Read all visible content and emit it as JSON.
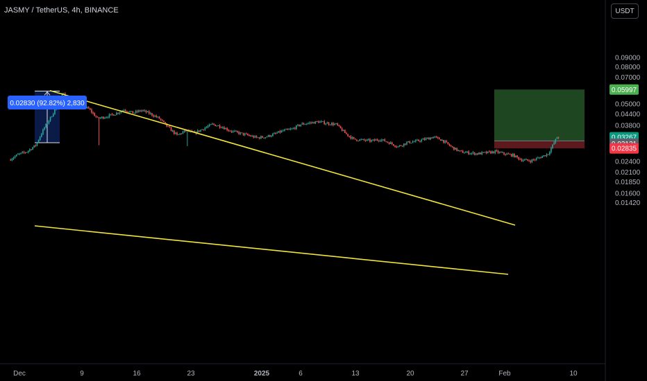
{
  "header": {
    "symbol_title": "JASMY / TetherUS, 4h, BINANCE",
    "currency_button": "USDT"
  },
  "measure_tooltip": "0.02830 (92.82%) 2,830",
  "price_axis": {
    "ticks": [
      "0.09000",
      "0.08000",
      "0.07000",
      "0.05000",
      "0.04400",
      "0.03800",
      "0.02400",
      "0.02100",
      "0.01850",
      "0.01600",
      "0.01420"
    ],
    "tag_target": {
      "text": "0.05997",
      "color": "#4caf50"
    },
    "tag_last": {
      "text": "0.03267",
      "countdown": "09:29",
      "color": "#089981"
    },
    "tag_entry": {
      "text": "0.03121",
      "color": "#5d606b"
    },
    "tag_stop": {
      "text": "0.02835",
      "color": "#f23645"
    }
  },
  "time_axis": {
    "labels": [
      "Dec",
      "9",
      "16",
      "23",
      "2025",
      "6",
      "13",
      "20",
      "27",
      "Feb",
      "10"
    ]
  },
  "colors": {
    "up": "#26a69a",
    "down": "#ef5350",
    "trendline": "#f5e53b",
    "measure": "#2962ff",
    "profit_zone": "#1e4620",
    "loss_zone": "#5c1a1e",
    "axis_text": "#b2b5be"
  },
  "chart_data": {
    "type": "candlestick",
    "symbol": "JASMY/USDT",
    "timeframe": "4h",
    "exchange": "BINANCE",
    "scale": "log",
    "x_range": [
      "Dec",
      "10"
    ],
    "anchors": [
      {
        "date": "Nov 30",
        "price": 0.0245
      },
      {
        "date": "Dec 1",
        "price": 0.0262
      },
      {
        "date": "Dec 2",
        "price": 0.0272
      },
      {
        "date": "Dec 3",
        "price": 0.0295
      },
      {
        "date": "Dec 4",
        "price": 0.037
      },
      {
        "date": "Dec 5",
        "price": 0.0445
      },
      {
        "date": "Dec 6",
        "price": 0.058
      },
      {
        "date": "Dec 7",
        "price": 0.05
      },
      {
        "date": "Dec 8",
        "price": 0.0485
      },
      {
        "date": "Dec 9",
        "price": 0.047
      },
      {
        "date": "Dec 10",
        "price": 0.0415
      },
      {
        "date": "Dec 11",
        "price": 0.0425
      },
      {
        "date": "Dec 12",
        "price": 0.044
      },
      {
        "date": "Dec 13",
        "price": 0.0465
      },
      {
        "date": "Dec 14",
        "price": 0.0445
      },
      {
        "date": "Dec 15",
        "price": 0.046
      },
      {
        "date": "Dec 16",
        "price": 0.044
      },
      {
        "date": "Dec 17",
        "price": 0.0415
      },
      {
        "date": "Dec 18",
        "price": 0.037
      },
      {
        "date": "Dec 19",
        "price": 0.0335
      },
      {
        "date": "Dec 20",
        "price": 0.0355
      },
      {
        "date": "Dec 21",
        "price": 0.0345
      },
      {
        "date": "Dec 22",
        "price": 0.0365
      },
      {
        "date": "Dec 23",
        "price": 0.0385
      },
      {
        "date": "Dec 24",
        "price": 0.0375
      },
      {
        "date": "Dec 25",
        "price": 0.0355
      },
      {
        "date": "Dec 26",
        "price": 0.0345
      },
      {
        "date": "Dec 27",
        "price": 0.0335
      },
      {
        "date": "Dec 28",
        "price": 0.0325
      },
      {
        "date": "Dec 29",
        "price": 0.0328
      },
      {
        "date": "Dec 30",
        "price": 0.034
      },
      {
        "date": "Dec 31",
        "price": 0.0355
      },
      {
        "date": "Jan 1",
        "price": 0.0362
      },
      {
        "date": "Jan 2",
        "price": 0.0385
      },
      {
        "date": "Jan 3",
        "price": 0.0392
      },
      {
        "date": "Jan 4",
        "price": 0.0398
      },
      {
        "date": "Jan 5",
        "price": 0.039
      },
      {
        "date": "Jan 6",
        "price": 0.0385
      },
      {
        "date": "Jan 7",
        "price": 0.0345
      },
      {
        "date": "Jan 8",
        "price": 0.0318
      },
      {
        "date": "Jan 9",
        "price": 0.0315
      },
      {
        "date": "Jan 10",
        "price": 0.0312
      },
      {
        "date": "Jan 11",
        "price": 0.0318
      },
      {
        "date": "Jan 12",
        "price": 0.0305
      },
      {
        "date": "Jan 13",
        "price": 0.029
      },
      {
        "date": "Jan 14",
        "price": 0.0305
      },
      {
        "date": "Jan 15",
        "price": 0.031
      },
      {
        "date": "Jan 16",
        "price": 0.0318
      },
      {
        "date": "Jan 17",
        "price": 0.0328
      },
      {
        "date": "Jan 18",
        "price": 0.0315
      },
      {
        "date": "Jan 19",
        "price": 0.029
      },
      {
        "date": "Jan 20",
        "price": 0.0272
      },
      {
        "date": "Jan 21",
        "price": 0.0268
      },
      {
        "date": "Jan 22",
        "price": 0.0265
      },
      {
        "date": "Jan 23",
        "price": 0.0268
      },
      {
        "date": "Jan 24",
        "price": 0.0272
      },
      {
        "date": "Jan 25",
        "price": 0.0265
      },
      {
        "date": "Jan 26",
        "price": 0.026
      },
      {
        "date": "Jan 27",
        "price": 0.0245
      },
      {
        "date": "Jan 28",
        "price": 0.0242
      },
      {
        "date": "Jan 29",
        "price": 0.0252
      },
      {
        "date": "Jan 30",
        "price": 0.0265
      },
      {
        "date": "Jan 31",
        "price": 0.0327
      }
    ],
    "trendlines": [
      {
        "name": "upper",
        "from": {
          "date": "Dec 6",
          "price": 0.0592
        },
        "to": {
          "date": "Feb 1",
          "price": 0.0302
        }
      },
      {
        "name": "lower",
        "from": {
          "date": "Dec 4",
          "price": 0.0295
        },
        "to": {
          "date": "Feb 1",
          "price": 0.0232
        }
      }
    ],
    "measure": {
      "from_price": 0.0305,
      "to_price": 0.0588,
      "change": "0.02830",
      "percent": "92.82%",
      "ticks": "2,830"
    },
    "position": {
      "type": "long",
      "entry": 0.03121,
      "target": 0.05997,
      "stop": 0.02835
    },
    "wick_spikes": [
      {
        "date": "Dec 10",
        "low": 0.0295
      },
      {
        "date": "Dec 20",
        "low": 0.0292
      }
    ],
    "last_price": 0.03267,
    "countdown": "09:29"
  }
}
